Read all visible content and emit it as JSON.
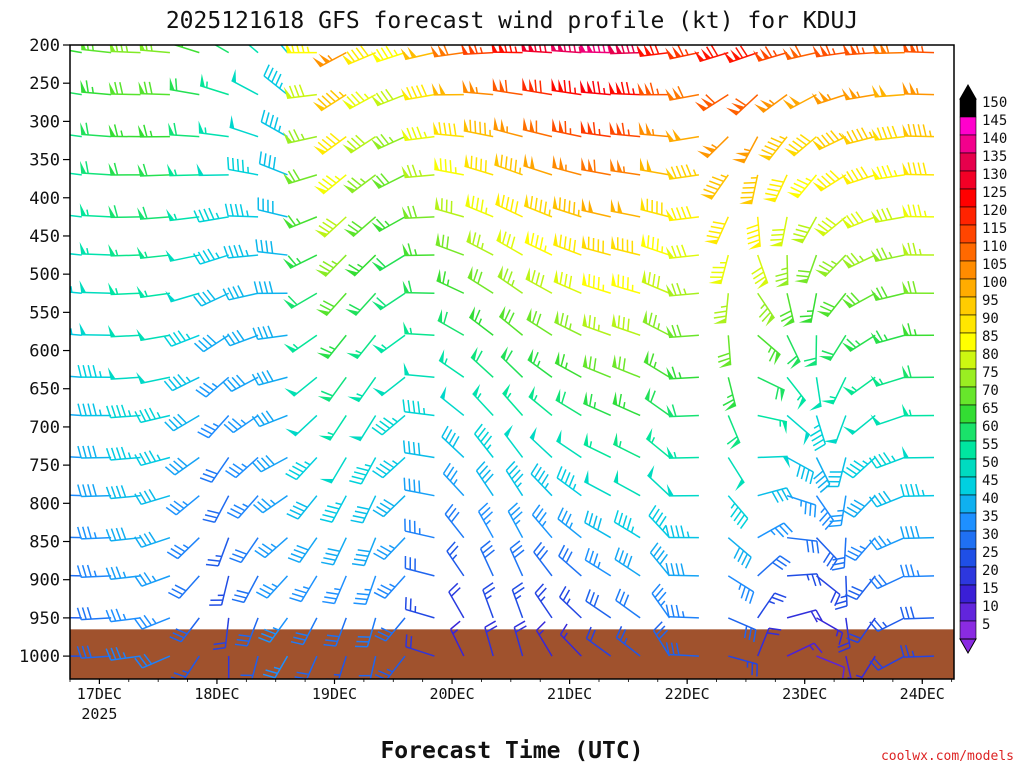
{
  "chart_data": {
    "type": "wind_barb_time_height",
    "title": "2025121618 GFS forecast wind profile (kt) for KDUJ",
    "xlabel": "Forecast Time (UTC)",
    "ylabel": "",
    "credit": "coolwx.com/models",
    "x_ticks": [
      {
        "label": "17DEC",
        "day": 17,
        "sublabel": "2025"
      },
      {
        "label": "18DEC",
        "day": 18
      },
      {
        "label": "19DEC",
        "day": 19
      },
      {
        "label": "20DEC",
        "day": 20
      },
      {
        "label": "21DEC",
        "day": 21
      },
      {
        "label": "22DEC",
        "day": 22
      },
      {
        "label": "23DEC",
        "day": 23
      },
      {
        "label": "24DEC",
        "day": 24
      }
    ],
    "x_range_days": [
      16.75,
      24.27
    ],
    "y_ticks": [
      200,
      250,
      300,
      350,
      400,
      450,
      500,
      550,
      600,
      650,
      700,
      750,
      800,
      850,
      900,
      950,
      1000
    ],
    "y_range_hpa": [
      200,
      1030
    ],
    "levels_hpa": [
      210,
      265,
      320,
      370,
      425,
      475,
      525,
      580,
      635,
      685,
      740,
      790,
      845,
      895,
      950,
      1000
    ],
    "terrain_surface_hpa": 965,
    "colorbar": {
      "title": "kt",
      "ticks": [
        150,
        145,
        140,
        135,
        130,
        125,
        120,
        115,
        110,
        105,
        100,
        95,
        90,
        85,
        80,
        75,
        70,
        65,
        60,
        55,
        50,
        45,
        40,
        35,
        30,
        25,
        20,
        15,
        10,
        5
      ],
      "stops": [
        {
          "kt": 5,
          "color": "#8a2be2"
        },
        {
          "kt": 15,
          "color": "#3a1fd6"
        },
        {
          "kt": 25,
          "color": "#1f4fe6"
        },
        {
          "kt": 35,
          "color": "#1e90ff"
        },
        {
          "kt": 45,
          "color": "#00d0e0"
        },
        {
          "kt": 55,
          "color": "#00e6a0"
        },
        {
          "kt": 65,
          "color": "#33dd33"
        },
        {
          "kt": 75,
          "color": "#9aee22"
        },
        {
          "kt": 85,
          "color": "#ffff00"
        },
        {
          "kt": 95,
          "color": "#ffcc00"
        },
        {
          "kt": 105,
          "color": "#ff8c00"
        },
        {
          "kt": 115,
          "color": "#ff4500"
        },
        {
          "kt": 125,
          "color": "#ff0000"
        },
        {
          "kt": 135,
          "color": "#e6004c"
        },
        {
          "kt": 145,
          "color": "#ff00cc"
        },
        {
          "kt": 150,
          "color": "#000000"
        }
      ]
    },
    "profile_keys": {
      "days": [
        16.85,
        17.5,
        18.1,
        18.6,
        19.0,
        19.5,
        20.0,
        20.5,
        21.0,
        21.5,
        22.0,
        22.5,
        23.0,
        23.5,
        24.0,
        24.25
      ],
      "upper_speed_kt": [
        65,
        75,
        60,
        45,
        110,
        80,
        105,
        120,
        135,
        140,
        115,
        125,
        110,
        115,
        105,
        125
      ],
      "lower_speed_kt": [
        25,
        35,
        20,
        35,
        25,
        30,
        15,
        20,
        15,
        25,
        30,
        20,
        10,
        15,
        25,
        20
      ],
      "upper_dir_deg": [
        280,
        270,
        300,
        320,
        240,
        250,
        260,
        270,
        275,
        270,
        260,
        250,
        255,
        265,
        270,
        275
      ],
      "lower_dir_deg": [
        270,
        260,
        180,
        210,
        200,
        190,
        330,
        350,
        320,
        300,
        340,
        5,
        90,
        200,
        260,
        280
      ]
    }
  }
}
